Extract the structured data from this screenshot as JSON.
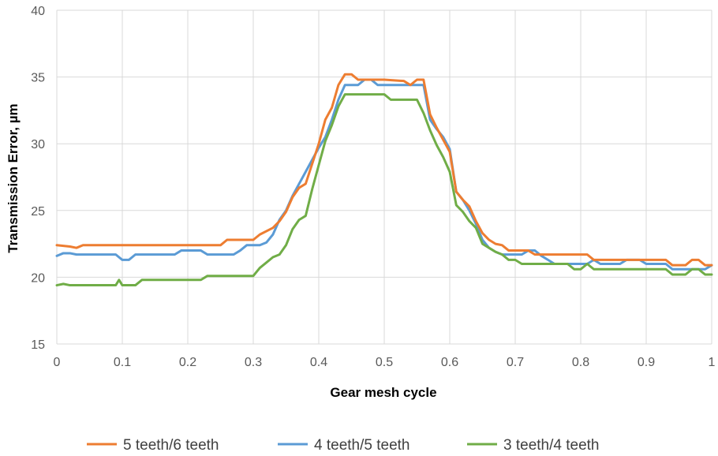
{
  "chart_data": {
    "type": "line",
    "title": "",
    "xlabel": "Gear mesh cycle",
    "ylabel": "Transmission  Error, µm",
    "xlim": [
      0,
      1
    ],
    "ylim": [
      15,
      40
    ],
    "x_ticks": [
      "0",
      "0.1",
      "0.2",
      "0.3",
      "0.4",
      "0.5",
      "0.6",
      "0.7",
      "0.8",
      "0.9",
      "1"
    ],
    "y_ticks": [
      "15",
      "20",
      "25",
      "30",
      "35",
      "40"
    ],
    "grid": true,
    "legend_position": "bottom",
    "series": [
      {
        "name": "5 teeth/6 teeth",
        "color": "#ED7D31",
        "points": [
          [
            0,
            22.4
          ],
          [
            0.02,
            22.3
          ],
          [
            0.03,
            22.2
          ],
          [
            0.04,
            22.4
          ],
          [
            0.06,
            22.4
          ],
          [
            0.1,
            22.4
          ],
          [
            0.15,
            22.4
          ],
          [
            0.2,
            22.4
          ],
          [
            0.25,
            22.4
          ],
          [
            0.26,
            22.8
          ],
          [
            0.3,
            22.8
          ],
          [
            0.31,
            23.2
          ],
          [
            0.33,
            23.7
          ],
          [
            0.34,
            24.2
          ],
          [
            0.35,
            24.9
          ],
          [
            0.36,
            26.0
          ],
          [
            0.37,
            26.7
          ],
          [
            0.38,
            27.0
          ],
          [
            0.39,
            28.5
          ],
          [
            0.4,
            30.0
          ],
          [
            0.41,
            31.8
          ],
          [
            0.42,
            32.7
          ],
          [
            0.43,
            34.4
          ],
          [
            0.44,
            35.2
          ],
          [
            0.45,
            35.2
          ],
          [
            0.46,
            34.8
          ],
          [
            0.5,
            34.8
          ],
          [
            0.53,
            34.7
          ],
          [
            0.54,
            34.4
          ],
          [
            0.55,
            34.8
          ],
          [
            0.56,
            34.8
          ],
          [
            0.57,
            32.2
          ],
          [
            0.58,
            31.2
          ],
          [
            0.59,
            30.3
          ],
          [
            0.6,
            29.4
          ],
          [
            0.61,
            26.4
          ],
          [
            0.62,
            25.8
          ],
          [
            0.63,
            25.3
          ],
          [
            0.64,
            24.2
          ],
          [
            0.65,
            23.3
          ],
          [
            0.66,
            22.8
          ],
          [
            0.67,
            22.5
          ],
          [
            0.68,
            22.4
          ],
          [
            0.69,
            22.0
          ],
          [
            0.72,
            22.0
          ],
          [
            0.73,
            21.7
          ],
          [
            0.8,
            21.7
          ],
          [
            0.81,
            21.7
          ],
          [
            0.82,
            21.3
          ],
          [
            0.9,
            21.3
          ],
          [
            0.93,
            21.3
          ],
          [
            0.94,
            20.9
          ],
          [
            0.96,
            20.9
          ],
          [
            0.97,
            21.3
          ],
          [
            0.98,
            21.3
          ],
          [
            0.99,
            20.9
          ],
          [
            1.0,
            20.9
          ]
        ]
      },
      {
        "name": "4 teeth/5 teeth",
        "color": "#5B9BD5",
        "points": [
          [
            0,
            21.6
          ],
          [
            0.01,
            21.8
          ],
          [
            0.02,
            21.8
          ],
          [
            0.03,
            21.7
          ],
          [
            0.05,
            21.7
          ],
          [
            0.08,
            21.7
          ],
          [
            0.09,
            21.7
          ],
          [
            0.1,
            21.3
          ],
          [
            0.11,
            21.3
          ],
          [
            0.12,
            21.7
          ],
          [
            0.15,
            21.7
          ],
          [
            0.18,
            21.7
          ],
          [
            0.19,
            22.0
          ],
          [
            0.22,
            22.0
          ],
          [
            0.23,
            21.7
          ],
          [
            0.27,
            21.7
          ],
          [
            0.28,
            22.0
          ],
          [
            0.29,
            22.4
          ],
          [
            0.31,
            22.4
          ],
          [
            0.32,
            22.6
          ],
          [
            0.33,
            23.2
          ],
          [
            0.34,
            24.3
          ],
          [
            0.35,
            25.0
          ],
          [
            0.36,
            26.1
          ],
          [
            0.37,
            27.0
          ],
          [
            0.38,
            27.9
          ],
          [
            0.39,
            28.8
          ],
          [
            0.4,
            29.7
          ],
          [
            0.41,
            30.5
          ],
          [
            0.42,
            31.8
          ],
          [
            0.43,
            33.3
          ],
          [
            0.44,
            34.4
          ],
          [
            0.45,
            34.4
          ],
          [
            0.46,
            34.4
          ],
          [
            0.47,
            34.8
          ],
          [
            0.48,
            34.8
          ],
          [
            0.49,
            34.4
          ],
          [
            0.5,
            34.4
          ],
          [
            0.55,
            34.4
          ],
          [
            0.56,
            34.4
          ],
          [
            0.57,
            31.8
          ],
          [
            0.58,
            31.1
          ],
          [
            0.59,
            30.5
          ],
          [
            0.6,
            29.6
          ],
          [
            0.61,
            26.4
          ],
          [
            0.62,
            25.8
          ],
          [
            0.63,
            25.0
          ],
          [
            0.64,
            24.0
          ],
          [
            0.65,
            22.8
          ],
          [
            0.66,
            22.2
          ],
          [
            0.67,
            21.9
          ],
          [
            0.68,
            21.7
          ],
          [
            0.7,
            21.7
          ],
          [
            0.71,
            21.7
          ],
          [
            0.72,
            22.0
          ],
          [
            0.73,
            22.0
          ],
          [
            0.74,
            21.6
          ],
          [
            0.75,
            21.3
          ],
          [
            0.76,
            21.0
          ],
          [
            0.8,
            21.0
          ],
          [
            0.81,
            21.0
          ],
          [
            0.82,
            21.3
          ],
          [
            0.83,
            21.0
          ],
          [
            0.86,
            21.0
          ],
          [
            0.87,
            21.3
          ],
          [
            0.89,
            21.3
          ],
          [
            0.9,
            21.0
          ],
          [
            0.93,
            21.0
          ],
          [
            0.94,
            20.6
          ],
          [
            0.98,
            20.6
          ],
          [
            0.99,
            20.6
          ],
          [
            1.0,
            20.9
          ]
        ]
      },
      {
        "name": "3 teeth/4 teeth",
        "color": "#70AD47",
        "points": [
          [
            0,
            19.4
          ],
          [
            0.01,
            19.5
          ],
          [
            0.02,
            19.4
          ],
          [
            0.05,
            19.4
          ],
          [
            0.08,
            19.4
          ],
          [
            0.09,
            19.4
          ],
          [
            0.095,
            19.8
          ],
          [
            0.1,
            19.4
          ],
          [
            0.12,
            19.4
          ],
          [
            0.13,
            19.8
          ],
          [
            0.16,
            19.8
          ],
          [
            0.2,
            19.8
          ],
          [
            0.22,
            19.8
          ],
          [
            0.23,
            20.1
          ],
          [
            0.26,
            20.1
          ],
          [
            0.3,
            20.1
          ],
          [
            0.31,
            20.7
          ],
          [
            0.32,
            21.1
          ],
          [
            0.33,
            21.5
          ],
          [
            0.34,
            21.7
          ],
          [
            0.35,
            22.4
          ],
          [
            0.36,
            23.6
          ],
          [
            0.37,
            24.3
          ],
          [
            0.38,
            24.6
          ],
          [
            0.39,
            26.6
          ],
          [
            0.4,
            28.4
          ],
          [
            0.41,
            30.2
          ],
          [
            0.42,
            31.4
          ],
          [
            0.43,
            32.8
          ],
          [
            0.44,
            33.7
          ],
          [
            0.45,
            33.7
          ],
          [
            0.5,
            33.7
          ],
          [
            0.51,
            33.3
          ],
          [
            0.55,
            33.3
          ],
          [
            0.56,
            32.3
          ],
          [
            0.57,
            31.0
          ],
          [
            0.58,
            29.9
          ],
          [
            0.59,
            29.0
          ],
          [
            0.6,
            27.9
          ],
          [
            0.61,
            25.4
          ],
          [
            0.62,
            24.9
          ],
          [
            0.63,
            24.2
          ],
          [
            0.64,
            23.7
          ],
          [
            0.65,
            22.5
          ],
          [
            0.66,
            22.2
          ],
          [
            0.67,
            21.9
          ],
          [
            0.68,
            21.7
          ],
          [
            0.69,
            21.3
          ],
          [
            0.7,
            21.3
          ],
          [
            0.71,
            21.0
          ],
          [
            0.77,
            21.0
          ],
          [
            0.78,
            21.0
          ],
          [
            0.79,
            20.6
          ],
          [
            0.8,
            20.6
          ],
          [
            0.81,
            21.0
          ],
          [
            0.82,
            20.6
          ],
          [
            0.9,
            20.6
          ],
          [
            0.93,
            20.6
          ],
          [
            0.94,
            20.2
          ],
          [
            0.96,
            20.2
          ],
          [
            0.97,
            20.6
          ],
          [
            0.98,
            20.6
          ],
          [
            0.99,
            20.2
          ],
          [
            1.0,
            20.2
          ]
        ]
      }
    ]
  }
}
